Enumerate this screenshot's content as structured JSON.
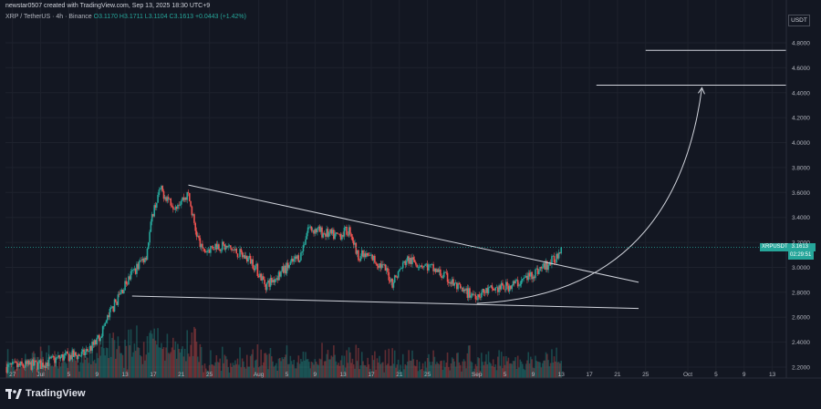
{
  "header": {
    "created_by": "newstar0507 created with TradingView.com, Sep 13, 2025 18:30 UTC+9",
    "symbol": "XRP / TetherUS · 4h · Binance",
    "ohlc_label": "O3.1170 H3.1711 L3.1104 C3.1613 +0.0443 (+1.42%)"
  },
  "axis": {
    "currency": "USDT",
    "price_ticks": [
      "4.8000",
      "4.6000",
      "4.4000",
      "4.2000",
      "4.0000",
      "3.8000",
      "3.6000",
      "3.4000",
      "3.2000",
      "3.0000",
      "2.8000",
      "2.6000",
      "2.4000",
      "2.2000"
    ],
    "time_ticks": [
      "27",
      "Jul",
      "5",
      "9",
      "13",
      "17",
      "21",
      "25",
      "Aug",
      "5",
      "9",
      "13",
      "17",
      "21",
      "25",
      "Sep",
      "5",
      "9",
      "13",
      "17",
      "21",
      "25",
      "Oct",
      "5",
      "9",
      "13"
    ]
  },
  "last_price": {
    "symbol": "XRPUSDT",
    "value": "3.1613",
    "countdown": "02:29:51"
  },
  "colors": {
    "up": "#26a69a",
    "down": "#ef5350",
    "bg": "#131722",
    "grid": "#1e222d",
    "drawing": "#d1d4dc"
  },
  "brand": {
    "name": "TradingView",
    "icon": "tradingview-logo-icon"
  },
  "chart_data": {
    "type": "candlestick",
    "timeframe": "4h",
    "x_range": [
      "Jun 26",
      "Oct 15"
    ],
    "ylim": [
      2.2,
      4.9
    ],
    "price_path": [
      {
        "x": "Jun 26",
        "y": 2.2
      },
      {
        "x": "Jul 1",
        "y": 2.22
      },
      {
        "x": "Jul 4",
        "y": 2.28
      },
      {
        "x": "Jul 7",
        "y": 2.3
      },
      {
        "x": "Jul 9",
        "y": 2.4
      },
      {
        "x": "Jul 11",
        "y": 2.65
      },
      {
        "x": "Jul 13",
        "y": 2.86
      },
      {
        "x": "Jul 14",
        "y": 2.95
      },
      {
        "x": "Jul 16",
        "y": 3.1
      },
      {
        "x": "Jul 17",
        "y": 3.45
      },
      {
        "x": "Jul 18",
        "y": 3.62
      },
      {
        "x": "Jul 20",
        "y": 3.5
      },
      {
        "x": "Jul 22",
        "y": 3.58
      },
      {
        "x": "Jul 23",
        "y": 3.3
      },
      {
        "x": "Jul 24",
        "y": 3.12
      },
      {
        "x": "Jul 26",
        "y": 3.18
      },
      {
        "x": "Jul 28",
        "y": 3.15
      },
      {
        "x": "Jul 31",
        "y": 3.05
      },
      {
        "x": "Aug 2",
        "y": 2.86
      },
      {
        "x": "Aug 3",
        "y": 2.9
      },
      {
        "x": "Aug 5",
        "y": 3.0
      },
      {
        "x": "Aug 7",
        "y": 3.1
      },
      {
        "x": "Aug 8",
        "y": 3.32
      },
      {
        "x": "Aug 10",
        "y": 3.28
      },
      {
        "x": "Aug 12",
        "y": 3.25
      },
      {
        "x": "Aug 14",
        "y": 3.3
      },
      {
        "x": "Aug 15",
        "y": 3.1
      },
      {
        "x": "Aug 17",
        "y": 3.08
      },
      {
        "x": "Aug 19",
        "y": 2.98
      },
      {
        "x": "Aug 20",
        "y": 2.88
      },
      {
        "x": "Aug 22",
        "y": 3.06
      },
      {
        "x": "Aug 24",
        "y": 3.03
      },
      {
        "x": "Aug 26",
        "y": 2.98
      },
      {
        "x": "Aug 28",
        "y": 2.9
      },
      {
        "x": "Aug 30",
        "y": 2.8
      },
      {
        "x": "Sep 1",
        "y": 2.78
      },
      {
        "x": "Sep 3",
        "y": 2.82
      },
      {
        "x": "Sep 5",
        "y": 2.84
      },
      {
        "x": "Sep 7",
        "y": 2.88
      },
      {
        "x": "Sep 9",
        "y": 2.95
      },
      {
        "x": "Sep 11",
        "y": 3.02
      },
      {
        "x": "Sep 12",
        "y": 3.06
      },
      {
        "x": "Sep 13",
        "y": 3.16
      }
    ],
    "drawings": [
      {
        "type": "trendline",
        "name": "upper-descending-trendline",
        "from": {
          "x": "Jul 22",
          "y": 3.66
        },
        "to": {
          "x": "Sep 24",
          "y": 2.88
        }
      },
      {
        "type": "trendline",
        "name": "lower-support-line",
        "from": {
          "x": "Jul 14",
          "y": 2.77
        },
        "to": {
          "x": "Sep 24",
          "y": 2.67
        }
      },
      {
        "type": "curve",
        "name": "parabolic-curve",
        "from": {
          "x": "Sep 1",
          "y": 2.71
        },
        "to": {
          "x": "Oct 3",
          "y": 4.44
        }
      },
      {
        "type": "horizontal",
        "name": "target-line-lower",
        "y": 4.46,
        "from": "Sep 18",
        "to": "Oct 15"
      },
      {
        "type": "horizontal",
        "name": "target-line-upper",
        "y": 4.74,
        "from": "Sep 25",
        "to": "Oct 15"
      },
      {
        "type": "dotted-price-line",
        "name": "last-price-line",
        "y": 3.1613
      }
    ]
  }
}
